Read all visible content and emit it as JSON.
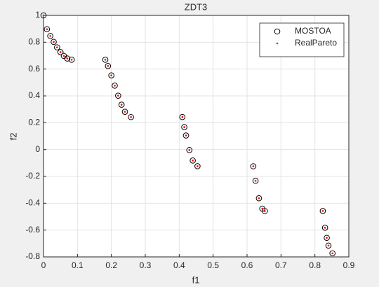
{
  "chart_data": {
    "type": "scatter",
    "title": "ZDT3",
    "xlabel": "f1",
    "ylabel": "f2",
    "x": [
      0,
      0.01,
      0.02,
      0.03,
      0.04,
      0.05,
      0.06,
      0.07,
      0.083,
      0.1822,
      0.19,
      0.2,
      0.21,
      0.22,
      0.23,
      0.24,
      0.2578,
      0.4093,
      0.415,
      0.42,
      0.43,
      0.44,
      0.4539,
      0.6184,
      0.625,
      0.635,
      0.645,
      0.6525,
      0.8233,
      0.83,
      0.835,
      0.84,
      0.8518
    ],
    "series": [
      {
        "name": "MOSTOA",
        "color": "#000000",
        "marker": "circle",
        "values": [
          1,
          0.897,
          0.8468,
          0.8025,
          0.762,
          0.7264,
          0.698,
          0.6788,
          0.6697,
          0.6698,
          0.6228,
          0.5528,
          0.4768,
          0.4017,
          0.3343,
          0.2818,
          0.2422,
          0.2423,
          0.1674,
          0.105,
          -0.0036,
          -0.0818,
          -0.1242,
          -0.1243,
          -0.2325,
          -0.3627,
          -0.4402,
          -0.4583,
          -0.4578,
          -0.5825,
          -0.6578,
          -0.7154,
          -0.7733
        ]
      },
      {
        "name": "RealPareto",
        "color": "#ff0000",
        "marker": "dot",
        "values": [
          1,
          0.897,
          0.8468,
          0.8025,
          0.762,
          0.7264,
          0.698,
          0.6788,
          0.6697,
          0.6698,
          0.6228,
          0.5528,
          0.4768,
          0.4017,
          0.3343,
          0.2818,
          0.2422,
          0.2423,
          0.1674,
          0.105,
          -0.0036,
          -0.0818,
          -0.1242,
          -0.1243,
          -0.2325,
          -0.3627,
          -0.4402,
          -0.4583,
          -0.4578,
          -0.5825,
          -0.6578,
          -0.7154,
          -0.7733
        ]
      }
    ],
    "xlim": [
      0,
      0.9
    ],
    "xticks": [
      0,
      0.1,
      0.2,
      0.3,
      0.4,
      0.5,
      0.6,
      0.7,
      0.8,
      0.9
    ],
    "ylim": [
      -0.8,
      1
    ],
    "yticks": [
      -0.8,
      -0.6,
      -0.4,
      -0.2,
      0,
      0.2,
      0.4,
      0.6,
      0.8,
      1
    ],
    "grid": true,
    "legend": "northeast"
  }
}
